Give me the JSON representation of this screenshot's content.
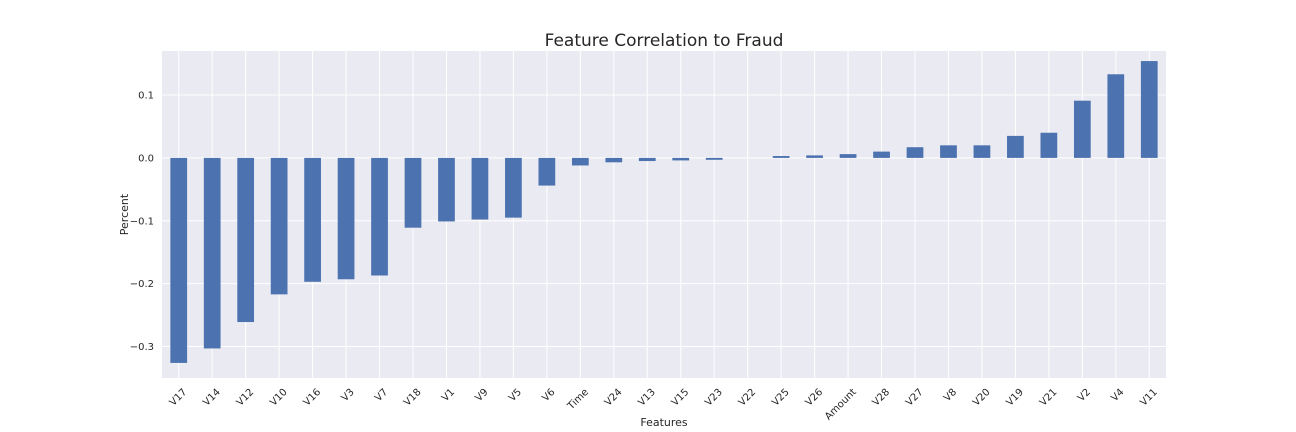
{
  "chart_data": {
    "type": "bar",
    "title": "Feature Correlation to Fraud",
    "xlabel": "Features",
    "ylabel": "Percent",
    "ylim": [
      -0.35,
      0.17
    ],
    "yticks": [
      -0.3,
      -0.2,
      -0.1,
      0.0,
      0.1
    ],
    "ytick_labels": [
      "−0.3",
      "−0.2",
      "−0.1",
      "0.0",
      "0.1"
    ],
    "grid": true,
    "categories": [
      "V17",
      "V14",
      "V12",
      "V10",
      "V16",
      "V3",
      "V7",
      "V18",
      "V1",
      "V9",
      "V5",
      "V6",
      "Time",
      "V24",
      "V13",
      "V15",
      "V23",
      "V22",
      "V25",
      "V26",
      "Amount",
      "V28",
      "V27",
      "V8",
      "V20",
      "V19",
      "V21",
      "V2",
      "V4",
      "V11"
    ],
    "values": [
      -0.326,
      -0.303,
      -0.261,
      -0.217,
      -0.197,
      -0.193,
      -0.187,
      -0.111,
      -0.101,
      -0.098,
      -0.095,
      -0.044,
      -0.012,
      -0.007,
      -0.005,
      -0.004,
      -0.003,
      0.0,
      0.003,
      0.004,
      0.006,
      0.01,
      0.017,
      0.02,
      0.02,
      0.035,
      0.04,
      0.091,
      0.133,
      0.154
    ],
    "colors": {
      "bar": "#4c72b0",
      "plot_background": "#eaeaf2",
      "grid": "#ffffff",
      "text": "#262626"
    }
  }
}
